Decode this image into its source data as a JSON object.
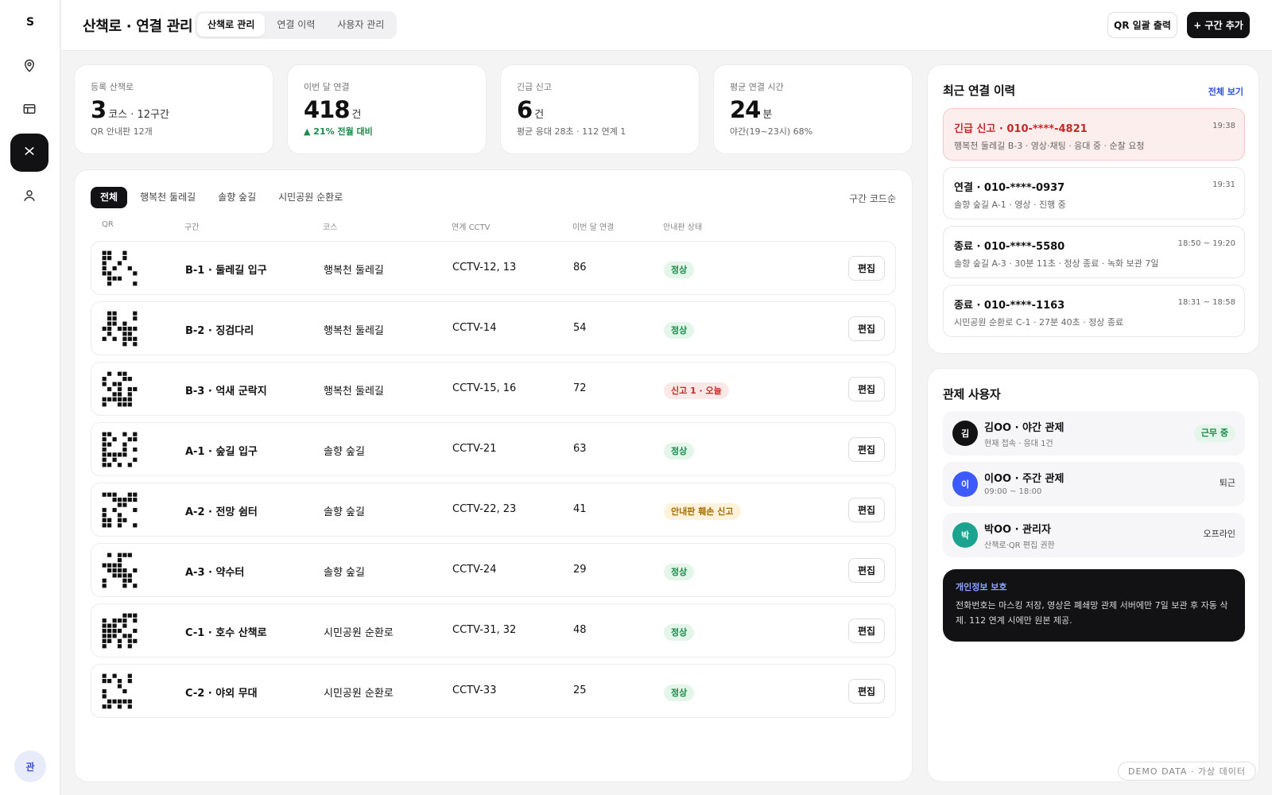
{
  "sidebar": {
    "logo": "S",
    "user_initial": "관",
    "items": [
      {
        "icon": "map-pin-icon"
      },
      {
        "icon": "table-icon"
      },
      {
        "icon": "x-icon",
        "active": true
      },
      {
        "icon": "user-icon"
      }
    ]
  },
  "header": {
    "title": "산책로 · 연결 관리",
    "tabs": [
      "산책로 관리",
      "연결 이력",
      "사용자 관리"
    ],
    "active_tab": "산책로 관리",
    "qr_button": "QR 일괄 출력",
    "add_button": "+ 구간 추가"
  },
  "stats": [
    {
      "label": "등록 산책로",
      "value": "3",
      "unit": "코스 · 12구간",
      "sub": "QR 안내판 12개"
    },
    {
      "label": "이번 달 연결",
      "value": "418",
      "unit": "건",
      "sub": "▲ 21% 전월 대비"
    },
    {
      "label": "긴급 신고",
      "value": "6",
      "unit": "건",
      "sub": "평균 응대 28초 · 112 연계 1"
    },
    {
      "label": "평균 연결 시간",
      "value": "24",
      "unit": "분",
      "sub": "야간(19~23시) 68%"
    }
  ],
  "filters": [
    "전체",
    "행복천 둘레길",
    "솔향 숲길",
    "시민공원 순환로"
  ],
  "active_filter": "전체",
  "sort_label": "구간 코드순",
  "table": {
    "headers": [
      "QR",
      "구간",
      "코스",
      "연계 CCTV",
      "이번 달 연결",
      "안내판 상태"
    ],
    "edit_label": "편집",
    "rows": [
      {
        "section": "B-1 · 둘레길 입구",
        "course": "행복천 둘레길",
        "cctv": "CCTV-12, 13",
        "count": "86",
        "status": "정상",
        "status_type": "ok"
      },
      {
        "section": "B-2 · 징검다리",
        "course": "행복천 둘레길",
        "cctv": "CCTV-14",
        "count": "54",
        "status": "정상",
        "status_type": "ok"
      },
      {
        "section": "B-3 · 억새 군락지",
        "course": "행복천 둘레길",
        "cctv": "CCTV-15, 16",
        "count": "72",
        "status": "신고 1 · 오늘",
        "status_type": "warn"
      },
      {
        "section": "A-1 · 숲길 입구",
        "course": "솔향 숲길",
        "cctv": "CCTV-21",
        "count": "63",
        "status": "정상",
        "status_type": "ok"
      },
      {
        "section": "A-2 · 전망 쉼터",
        "course": "솔향 숲길",
        "cctv": "CCTV-22, 23",
        "count": "41",
        "status": "안내판 훼손 신고",
        "status_type": "amber"
      },
      {
        "section": "A-3 · 약수터",
        "course": "솔향 숲길",
        "cctv": "CCTV-24",
        "count": "29",
        "status": "정상",
        "status_type": "ok"
      },
      {
        "section": "C-1 · 호수 산책로",
        "course": "시민공원 순환로",
        "cctv": "CCTV-31, 32",
        "count": "48",
        "status": "정상",
        "status_type": "ok"
      },
      {
        "section": "C-2 · 야외 무대",
        "course": "시민공원 순환로",
        "cctv": "CCTV-33",
        "count": "25",
        "status": "정상",
        "status_type": "ok"
      }
    ]
  },
  "history": {
    "title": "최근 연결 이력",
    "see_all": "전체 보기",
    "items": [
      {
        "title": "긴급 신고 · 010-****-4821",
        "time": "19:38",
        "desc": "행복천 둘레길 B-3 · 영상·채팅 · 응대 중 · 순찰 요청",
        "alert": true
      },
      {
        "title": "연결 · 010-****-0937",
        "time": "19:31",
        "desc": "솔향 숲길 A-1 · 영상 · 진행 중",
        "alert": false
      },
      {
        "title": "종료 · 010-****-5580",
        "time": "18:50 ~ 19:20",
        "desc": "솔향 숲길 A-3 · 30분 11초 · 정상 종료 · 녹화 보관 7일",
        "alert": false
      },
      {
        "title": "종료 · 010-****-1163",
        "time": "18:31 ~ 18:58",
        "desc": "시민공원 순환로 C-1 · 27분 40초 · 정상 종료",
        "alert": false
      }
    ]
  },
  "users": {
    "title": "관제 사용자",
    "items": [
      {
        "initial": "김",
        "name": "김OO · 야간 관제",
        "meta": "현재 접속 · 응대 1건",
        "status": "근무 중",
        "color": "#121214",
        "on": true
      },
      {
        "initial": "이",
        "name": "이OO · 주간 관제",
        "meta": "09:00 ~ 18:00",
        "status": "퇴근",
        "color": "#3d5afe",
        "on": false
      },
      {
        "initial": "박",
        "name": "박OO · 관리자",
        "meta": "산책로·QR 편집 권한",
        "status": "오프라인",
        "color": "#1aa38f",
        "on": false
      }
    ]
  },
  "privacy": {
    "title": "개인정보 보호",
    "body": "전화번호는 마스킹 저장, 영상은 폐쇄망 관제 서버에만 7일 보관 후 자동 삭제. 112 연계 시에만 원본 제공."
  },
  "demo_badge": "DEMO DATA · 가상 데이터",
  "colors": {
    "accent": "#121214",
    "link": "#2c4fd6",
    "ok": "#1a8a4a",
    "warn": "#c62828",
    "amber": "#a36a00"
  }
}
